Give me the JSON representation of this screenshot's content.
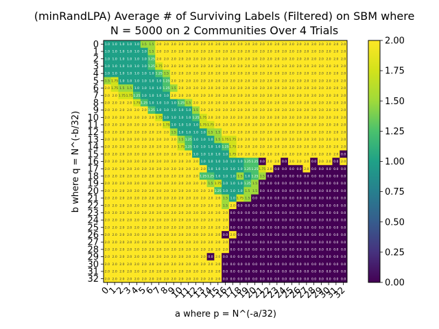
{
  "chart_data": {
    "type": "heatmap",
    "title_line1": "(minRandLPA) Average # of Surviving Labels (Filtered) on SBM where",
    "title_line2": "N = 5000 on 2 Communities Over 4 Trials",
    "xlabel": "a where p = N^(-a/32)",
    "ylabel": "b where q = N^(-b/32)",
    "x_ticks": [
      "0",
      "1",
      "2",
      "3",
      "4",
      "5",
      "6",
      "7",
      "8",
      "9",
      "10",
      "11",
      "12",
      "13",
      "14",
      "15",
      "16",
      "17",
      "18",
      "19",
      "20",
      "21",
      "22",
      "23",
      "24",
      "25",
      "26",
      "27",
      "28",
      "29",
      "30",
      "31",
      "32"
    ],
    "y_ticks": [
      "0",
      "1",
      "2",
      "3",
      "4",
      "5",
      "6",
      "7",
      "8",
      "9",
      "10",
      "11",
      "12",
      "13",
      "14",
      "15",
      "16",
      "17",
      "18",
      "19",
      "20",
      "21",
      "22",
      "23",
      "24",
      "25",
      "26",
      "27",
      "28",
      "29",
      "30",
      "31",
      "32"
    ],
    "colorbar": {
      "min": 0.0,
      "max": 2.0,
      "ticks": [
        "0.00",
        "0.25",
        "0.50",
        "0.75",
        "1.00",
        "1.25",
        "1.50",
        "1.75",
        "2.00"
      ]
    },
    "colormap": "viridis",
    "rows": [
      "1.0,1.0,1.0,1.0,1.0,1.5,1.5,2,2,2,2,2,2,2,2,2,2,2,2,2,2,2,2,2,2,2,2,2,2,2,2,2,2",
      "1.0,1.0,1.0,1.0,1.0,1.0,1.5,2,2,2,2,2,2,2,2,2,2,2,2,2,2,2,2,2,2,2,2,2,2,2,2,2,2",
      "1.0,1.0,1.0,1.0,1.0,1.0,1.25,2,2,2,2,2,2,2,2,2,2,2,2,2,2,2,2,2,2,2,2,2,2,2,2,2,2",
      "1.0,1.0,1.0,1.0,1.0,1.0,1.25,1.75,2,2,2,2,2,2,2,2,2,2,2,2,2,2,2,2,2,2,2,2,2,2,2,2,2",
      "1.0,1.0,1.0,1.0,1.0,1.0,1.0,1.25,1.5,2,2,2,2,2,2,2,2,2,2,2,2,2,2,2,2,2,2,2,2,2,2,2,2",
      "1.5,1.75,1.0,1.0,1.0,1.0,1.0,1.0,1.25,2,2,2,2,2,2,2,2,2,2,2,2,2,2,2,2,2,2,2,2,2,2,2,2",
      "2,1.75,1.5,1.5,1.0,1.0,1.0,1.0,1.25,1.5,2,2,2,2,2,2,2,2,2,2,2,2,2,2,2,2,2,2,2,2,2,2,2",
      "2,2,1.75,1.75,1.25,1.0,1.0,1.0,1.0,2,2,2,2,2,2,2,2,2,2,2,2,2,2,2,2,2,2,2,2,2,2,2,2",
      "2,2,2,2,1.75,1.25,1.0,1.0,1.0,1.0,1.25,1.5,2,2,2,2,2,2,2,2,2,2,2,2,2,2,2,2,2,2,2,2,2",
      "2,2,2,2,2,2,1.25,1.0,1.0,1.0,1.0,1.0,1.5,2,2,2,2,2,2,2,2,2,2,2,2,2,2,2,2,2,2,2,2",
      "2,2,2,2,2,2,2,1.75,1.0,1.0,1.0,1.0,1.25,1.75,2,2,2,2,2,2,2,2,2,2,2,2,2,2,2,2,2,2,2",
      "2,2,2,2,2,2,2,2,1.75,1.0,1.0,1.0,1.0,1.75,1.75,2,2,2,2,2,2,2,2,2,2,2,2,2,2,2,2,2,2",
      "2,2,2,2,2,2,2,2,2,1.5,1.0,1.0,1.0,1.0,1.5,1.5,2,2,2,2,2,2,2,2,2,2,2,2,2,2,2,2,2",
      "2,2,2,2,2,2,2,2,2,2,1.5,1.25,1.0,1.0,1.0,1.5,1.75,1.75,2,2,2,2,2,2,2,2,2,2,2,2,2,2,2",
      "2,2,2,2,2,2,2,2,2,2,1.75,1.25,1.0,1.0,1.0,1.0,1.25,1.75,2,2,2,2,2,2,2,2,2,2,2,2,2,2,2",
      "2,2,2,2,2,2,2,2,2,2,2,2,1.0,1.0,1.0,1.0,1.0,1.75,2,2,2,2,2,2,2,2,2,2,2,2,2,2,0.0",
      "2,2,2,2,2,2,2,2,2,2,2,2,2,1.0,1.0,1.0,1.0,1.0,1.0,1.25,1.25,0.0,2,2,0.0,2,2,2,0.0,2,2,0.0,2",
      "2,2,2,2,2,2,2,2,2,2,2,2,2,2,1.0,1.0,1.0,1.0,1.0,1.25,1.25,1.75,2,0.0,0.0,0.0,0.0,2,0.0,0.0,0.0,0.0,0.0",
      "2,2,2,2,2,2,2,2,2,2,2,2,2,1.25,1.25,1.0,1.0,1.0,1.5,1.0,1.25,1.5,0.0,0.0,0.0,0.0,0.0,0.0,0.0,0.0,0.0,0.0,0.0",
      "2,2,2,2,2,2,2,2,2,2,2,2,2,2,1.5,1.75,1.0,1.0,1.0,1.25,1.5,0.0,0.0,0.0,0.0,0.0,0.0,0.0,0.0,0.0,0.0,0.0,0.0",
      "2,2,2,2,2,2,2,2,2,2,2,2,2,2,2,1.25,1.0,1.0,1.0,1.5,1.5,0.0,0.0,0.0,0.0,0.0,0.0,0.0,0.0,0.0,0.0,0.0,0.0",
      "2,2,2,2,2,2,2,2,2,2,2,2,2,2,2,2,1.5,1.0,1.75,1.5,0.0,0.0,0.0,0.0,0.0,0.0,0.0,0.0,0.0,0.0,0.0,0.0,0.0",
      "2,2,2,2,2,2,2,2,2,2,2,2,2,2,2,2,1.5,2,0.0,0.0,0.0,0.0,0.0,0.0,0.0,0.0,0.0,0.0,0.0,0.0,0.0,0.0,0.0",
      "2,2,2,2,2,2,2,2,2,2,2,2,2,2,2,2,2,0.0,0.0,0.0,0.0,0.0,0.0,0.0,0.0,0.0,0.0,0.0,0.0,0.0,0.0,0.0,0.0",
      "2,2,2,2,2,2,2,2,2,2,2,2,2,2,2,2,2,0.0,0.0,0.0,0.0,0.0,0.0,0.0,0.0,0.0,0.0,0.0,0.0,0.0,0.0,0.0,0.0",
      "2,2,2,2,2,2,2,2,2,2,2,2,2,2,2,2,2,0.0,0.0,0.0,0.0,0.0,0.0,0.0,0.0,0.0,0.0,0.0,0.0,0.0,0.0,0.0,0.0",
      "2,2,2,2,2,2,2,2,2,2,2,2,2,2,2,2,0.0,2,0.0,0.0,0.0,0.0,0.0,0.0,0.0,0.0,0.0,0.0,0.0,0.0,0.0,0.0,0.0",
      "2,2,2,2,2,2,2,2,2,2,2,2,2,2,2,2,2,0.0,0.0,0.0,0.0,0.0,0.0,0.0,0.0,0.0,0.0,0.0,0.0,0.0,0.0,0.0,0.0",
      "2,2,2,2,2,2,2,2,2,2,2,2,2,2,2,2,2,0.0,0.0,0.0,0.0,0.0,0.0,0.0,0.0,0.0,0.0,0.0,0.0,0.0,0.0,0.0,0.0",
      "2,2,2,2,2,2,2,2,2,2,2,2,2,2,0.0,2,0.0,0.0,0.0,0.0,0.0,0.0,0.0,0.0,0.0,0.0,0.0,0.0,0.0,0.0,0.0,0.0,0.0",
      "2,2,2,2,2,2,2,2,2,2,2,2,2,2,2,2,0.0,0.0,0.0,0.0,0.0,0.0,0.0,0.0,0.0,0.0,0.0,0.0,0.0,0.0,0.0,0.0,0.0",
      "2,2,2,2,2,2,2,2,2,2,2,2,2,2,2,2,0.0,0.0,0.0,0.0,0.0,0.0,0.0,0.0,0.0,0.0,0.0,0.0,0.0,0.0,0.0,0.0,0.0",
      "2,2,2,2,2,2,2,2,2,2,2,2,2,2,2,2,0.0,0.0,0.0,0.0,0.0,0.0,0.0,0.0,0.0,0.0,0.0,0.0,0.0,0.0,0.0,0.0,0.0"
    ]
  }
}
